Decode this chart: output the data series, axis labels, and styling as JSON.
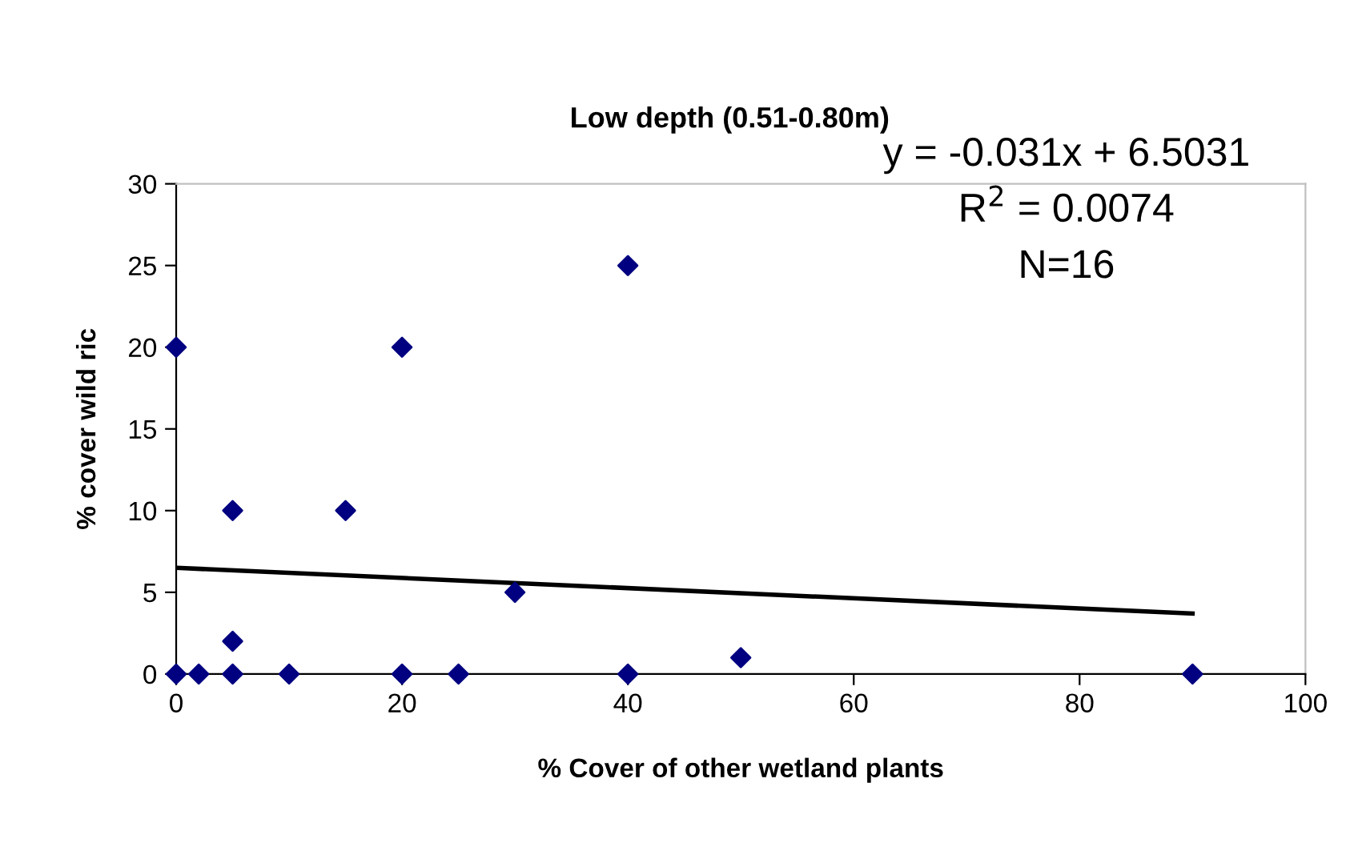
{
  "chart_data": {
    "type": "scatter",
    "title": "Low depth (0.51-0.80m)",
    "xlabel": "% Cover of other wetland plants",
    "ylabel": "% cover wild ric",
    "series": [
      {
        "color": "#000080",
        "marker": "diamond",
        "x": [
          0,
          0,
          2,
          5,
          5,
          5,
          10,
          15,
          20,
          20,
          25,
          30,
          40,
          40,
          50,
          90
        ],
        "values": [
          20,
          0,
          0,
          10,
          2,
          0,
          0,
          10,
          20,
          0,
          0,
          5,
          25,
          0,
          1,
          0
        ]
      },
      {
        "type": "line",
        "color": "#000000",
        "marker": "none",
        "line_style": "solid",
        "x": [
          0,
          90
        ],
        "values": [
          6.5,
          3.7
        ]
      }
    ],
    "xlim": [
      0,
      100
    ],
    "ylim": [
      0,
      30
    ],
    "xticks": [
      0,
      20,
      40,
      60,
      80,
      100
    ],
    "yticks": [
      0,
      5,
      10,
      15,
      20,
      25,
      30
    ],
    "grid": false,
    "legend": false,
    "annotations": [
      "y = -0.031x + 6.5031",
      "R$^{2}$ = 0.0074",
      "N=16"
    ]
  }
}
